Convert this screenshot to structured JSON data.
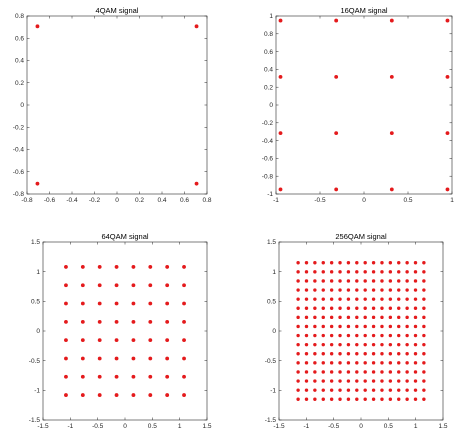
{
  "colors": {
    "marker": "#e41a1c",
    "axes": "#262626",
    "background": "#ffffff"
  },
  "chart_data": [
    {
      "type": "scatter",
      "title": "4QAM signal",
      "xlabel": "",
      "ylabel": "",
      "xlim": [
        -0.8,
        0.8
      ],
      "ylim": [
        -0.8,
        0.8
      ],
      "xticks": [
        -0.8,
        -0.6,
        -0.4,
        -0.2,
        0,
        0.2,
        0.4,
        0.6,
        0.8
      ],
      "xtick_labels": [
        "-0.8",
        "-0.6",
        "-0.4",
        "-0.2",
        "0",
        "0.2",
        "0.4",
        "0.6",
        "0.8"
      ],
      "yticks": [
        -0.8,
        -0.6,
        -0.4,
        -0.2,
        0,
        0.2,
        0.4,
        0.6,
        0.8
      ],
      "ytick_labels": [
        "-0.8",
        "-0.6",
        "-0.4",
        "-0.2",
        "0",
        "0.2",
        "0.4",
        "0.6",
        "0.8"
      ],
      "grid": false,
      "constellation": {
        "levels": [
          -0.7071,
          0.7071
        ]
      }
    },
    {
      "type": "scatter",
      "title": "16QAM signal",
      "xlabel": "",
      "ylabel": "",
      "xlim": [
        -1,
        1
      ],
      "ylim": [
        -1,
        1
      ],
      "xticks": [
        -1,
        -0.5,
        0,
        0.5,
        1
      ],
      "xtick_labels": [
        "-1",
        "-0.5",
        "0",
        "0.5",
        "1"
      ],
      "yticks": [
        -1,
        -0.8,
        -0.6,
        -0.4,
        -0.2,
        0,
        0.2,
        0.4,
        0.6,
        0.8,
        1
      ],
      "ytick_labels": [
        "-1",
        "-0.8",
        "-0.6",
        "-0.4",
        "-0.2",
        "0",
        "0.2",
        "0.4",
        "0.6",
        "0.8",
        "1"
      ],
      "grid": false,
      "constellation": {
        "levels": [
          -0.9487,
          -0.3162,
          0.3162,
          0.9487
        ]
      }
    },
    {
      "type": "scatter",
      "title": "64QAM signal",
      "xlabel": "",
      "ylabel": "",
      "xlim": [
        -1.5,
        1.5
      ],
      "ylim": [
        -1.5,
        1.5
      ],
      "xticks": [
        -1.5,
        -1,
        -0.5,
        0,
        0.5,
        1,
        1.5
      ],
      "xtick_labels": [
        "-1.5",
        "-1",
        "-0.5",
        "0",
        "0.5",
        "1",
        "1.5"
      ],
      "yticks": [
        -1.5,
        -1,
        -0.5,
        0,
        0.5,
        1,
        1.5
      ],
      "ytick_labels": [
        "-1.5",
        "-1",
        "-0.5",
        "0",
        "0.5",
        "1",
        "1.5"
      ],
      "grid": false,
      "constellation": {
        "levels": [
          -1.0801,
          -0.7715,
          -0.4629,
          -0.1543,
          0.1543,
          0.4629,
          0.7715,
          1.0801
        ]
      }
    },
    {
      "type": "scatter",
      "title": "256QAM signal",
      "xlabel": "",
      "ylabel": "",
      "xlim": [
        -1.5,
        1.5
      ],
      "ylim": [
        -1.5,
        1.5
      ],
      "xticks": [
        -1.5,
        -1,
        -0.5,
        0,
        0.5,
        1,
        1.5
      ],
      "xtick_labels": [
        "-1.5",
        "-1",
        "-0.5",
        "0",
        "0.5",
        "1",
        "1.5"
      ],
      "yticks": [
        -1.5,
        -1,
        -0.5,
        0,
        0.5,
        1,
        1.5
      ],
      "ytick_labels": [
        "-1.5",
        "-1",
        "-0.5",
        "0",
        "0.5",
        "1",
        "1.5"
      ],
      "grid": false,
      "constellation": {
        "levels": [
          -1.1504,
          -0.9971,
          -0.8437,
          -0.6903,
          -0.5369,
          -0.3835,
          -0.2301,
          -0.0767,
          0.0767,
          0.2301,
          0.3835,
          0.5369,
          0.6903,
          0.8437,
          0.9971,
          1.1504
        ]
      }
    }
  ]
}
